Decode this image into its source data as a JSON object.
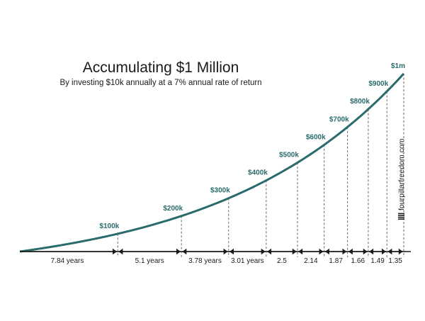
{
  "chart_data": {
    "type": "line",
    "title": "Accumulating $1 Million",
    "subtitle": "By investing $10k annually at a 7% annual rate of return",
    "xlabel": "",
    "ylabel": "",
    "series_color": "#2a6b6b",
    "grid": false,
    "milestones": [
      {
        "label": "$100k",
        "value": 100000,
        "years": 7.84
      },
      {
        "label": "$200k",
        "value": 200000,
        "years": 12.94
      },
      {
        "label": "$300k",
        "value": 300000,
        "years": 16.72
      },
      {
        "label": "$400k",
        "value": 400000,
        "years": 19.73
      },
      {
        "label": "$500k",
        "value": 500000,
        "years": 22.23
      },
      {
        "label": "$600k",
        "value": 600000,
        "years": 24.37
      },
      {
        "label": "$700k",
        "value": 700000,
        "years": 26.24
      },
      {
        "label": "$800k",
        "value": 800000,
        "years": 27.9
      },
      {
        "label": "$900k",
        "value": 900000,
        "years": 29.39
      },
      {
        "label": "$1m",
        "value": 1000000,
        "years": 30.74
      }
    ],
    "intervals": [
      {
        "label": "7.84 years",
        "years": 7.84
      },
      {
        "label": "5.1 years",
        "years": 5.1
      },
      {
        "label": "3.78 years",
        "years": 3.78
      },
      {
        "label": "3.01 years",
        "years": 3.01
      },
      {
        "label": "2.5",
        "years": 2.5
      },
      {
        "label": "2.14",
        "years": 2.14
      },
      {
        "label": "1.87",
        "years": 1.87
      },
      {
        "label": "1.66",
        "years": 1.66
      },
      {
        "label": "1.49",
        "years": 1.49
      },
      {
        "label": "1.35",
        "years": 1.35
      }
    ]
  },
  "watermark": {
    "text": "fourpillarfreedom.com",
    "icon": "four-pillars-icon"
  }
}
